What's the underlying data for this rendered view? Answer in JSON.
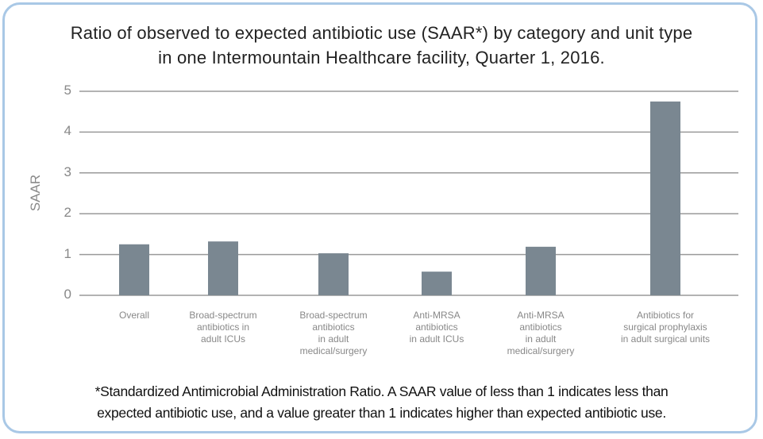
{
  "chart_data": {
    "type": "bar",
    "title": "Ratio of observed to expected antibiotic use (SAAR*) by category and unit type\nin one Intermountain Healthcare facility, Quarter 1, 2016.",
    "y_label": "SAAR",
    "categories": [
      "Overall",
      "Broad-spectrum\nantibiotics in\nadult ICUs",
      "Broad-spectrum\nantibiotics\nin adult\nmedical/surgery",
      "Anti-MRSA\nantibiotics\nin adult ICUs",
      "Anti-MRSA\nantibiotics\nin adult\nmedical/surgery",
      "Antibiotics for\nsurgical prophylaxis\nin adult surgical units"
    ],
    "values": [
      1.25,
      1.32,
      1.03,
      0.58,
      1.19,
      4.75
    ],
    "color": "#7a8791",
    "ylim": [
      0,
      5
    ],
    "yticks": [
      0,
      1,
      2,
      3,
      4,
      5
    ],
    "grid": true,
    "footnote": "*Standardized Antimicrobial Administration Ratio. A SAAR value of less than 1 indicates less than\nexpected antibiotic use, and a value greater than 1 indicates higher than expected antibiotic use."
  }
}
